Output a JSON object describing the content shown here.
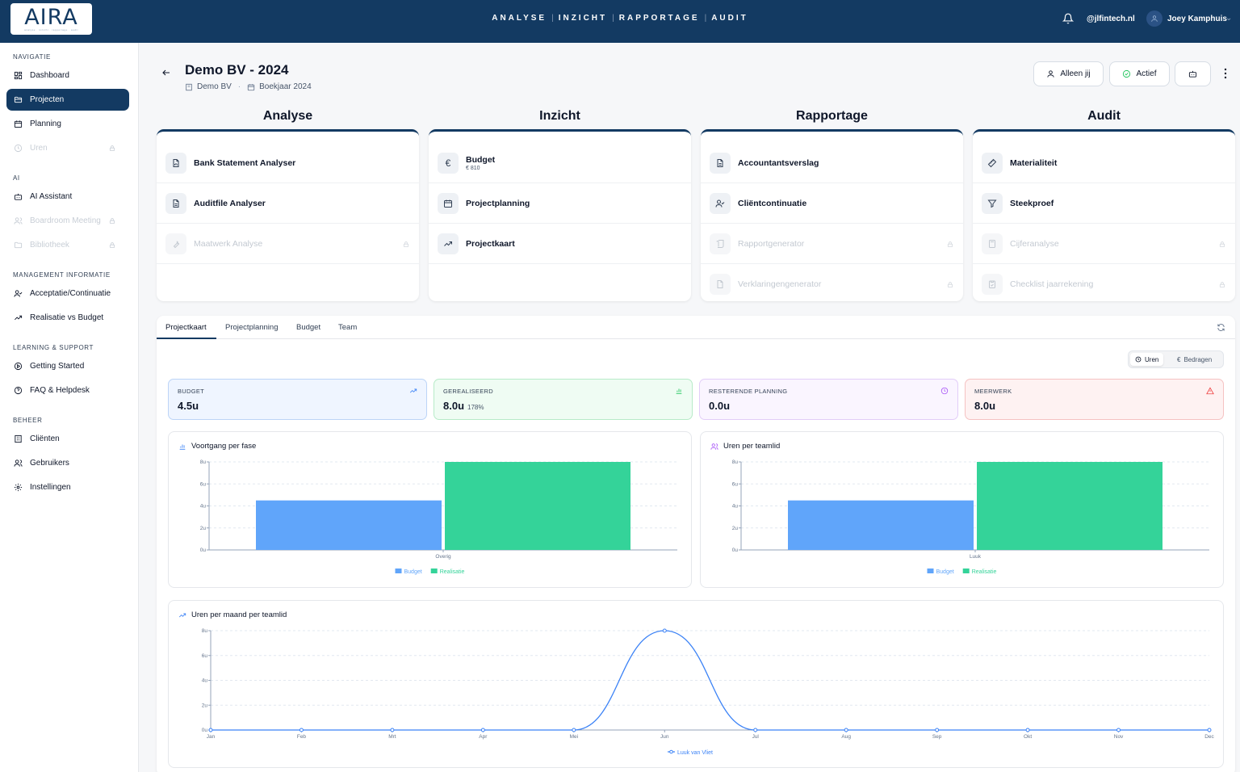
{
  "app": {
    "logo": "AIRA",
    "logo_tagline": "analyse · inzicht · rapportage · audit",
    "topnav": [
      "ANALYSE",
      "INZICHT",
      "RAPPORTAGE",
      "AUDIT"
    ],
    "domain": "@jlfintech.nl",
    "user_name": "Joey Kamphuis"
  },
  "sidebar": {
    "sections": [
      "NAVIGATIE",
      "AI",
      "MANAGEMENT INFORMATIE",
      "LEARNING & SUPPORT",
      "BEHEER"
    ],
    "items": [
      {
        "label": "Dashboard",
        "icon": "grid-icon"
      },
      {
        "label": "Projecten",
        "icon": "folder-icon",
        "active": true
      },
      {
        "label": "Planning",
        "icon": "calendar-icon"
      },
      {
        "label": "Uren",
        "icon": "clock-icon",
        "locked": true
      },
      {
        "label": "AI Assistant",
        "icon": "bot-icon"
      },
      {
        "label": "Boardroom Meeting",
        "icon": "users-icon",
        "locked": true
      },
      {
        "label": "Bibliotheek",
        "icon": "folder-icon",
        "locked": true
      },
      {
        "label": "Acceptatie/Continuatie",
        "icon": "user-check-icon"
      },
      {
        "label": "Realisatie vs Budget",
        "icon": "trend-icon"
      },
      {
        "label": "Getting Started",
        "icon": "play-icon"
      },
      {
        "label": "FAQ & Helpdesk",
        "icon": "help-icon"
      },
      {
        "label": "Cliënten",
        "icon": "building-icon"
      },
      {
        "label": "Gebruikers",
        "icon": "users-icon"
      },
      {
        "label": "Instellingen",
        "icon": "gear-icon"
      }
    ]
  },
  "page": {
    "title": "Demo BV - 2024",
    "client": "Demo BV",
    "year": "Boekjaar 2024",
    "btn_alleen": "Alleen jij",
    "btn_actief": "Actief"
  },
  "categories": [
    {
      "title": "Analyse",
      "rows": [
        {
          "label": "Bank Statement Analyser",
          "sub": "",
          "icon": "file-icon"
        },
        {
          "label": "Auditfile Analyser",
          "sub": "",
          "icon": "file-icon"
        },
        {
          "label": "Maatwerk Analyse",
          "sub": "",
          "icon": "wrench-icon",
          "locked": true
        }
      ]
    },
    {
      "title": "Inzicht",
      "rows": [
        {
          "label": "Budget",
          "sub": "€ 810",
          "icon": "euro-icon"
        },
        {
          "label": "Projectplanning",
          "sub": "",
          "icon": "calendar-icon"
        },
        {
          "label": "Projectkaart",
          "sub": "",
          "icon": "trend-icon"
        }
      ]
    },
    {
      "title": "Rapportage",
      "rows": [
        {
          "label": "Accountantsverslag",
          "sub": "",
          "icon": "file-icon"
        },
        {
          "label": "Cliëntcontinuatie",
          "sub": "",
          "icon": "user-check-icon"
        },
        {
          "label": "Rapportgenerator",
          "sub": "",
          "icon": "file-icon",
          "locked": true
        },
        {
          "label": "Verklaringengenerator",
          "sub": "",
          "icon": "file-icon",
          "locked": true
        }
      ]
    },
    {
      "title": "Audit",
      "rows": [
        {
          "label": "Materialiteit",
          "sub": "",
          "icon": "ruler-icon"
        },
        {
          "label": "Steekproef",
          "sub": "",
          "icon": "filter-icon"
        },
        {
          "label": "Cijferanalyse",
          "sub": "",
          "icon": "calculator-icon",
          "locked": true
        },
        {
          "label": "Checklist jaarrekening",
          "sub": "",
          "icon": "clipboard-icon",
          "locked": true
        }
      ]
    }
  ],
  "panel": {
    "tabs": [
      "Projectkaart",
      "Projectplanning",
      "Budget",
      "Team"
    ],
    "toggle_uren": "Uren",
    "toggle_bedragen": "Bedragen",
    "kpis": [
      {
        "label": "BUDGET",
        "value": "4.5u",
        "extra": "",
        "color": "#3b82f6"
      },
      {
        "label": "GEREALISEERD",
        "value": "8.0u",
        "extra": "178%",
        "color": "#22c55e"
      },
      {
        "label": "RESTERENDE PLANNING",
        "value": "0.0u",
        "extra": "",
        "color": "#a855f7"
      },
      {
        "label": "MEERWERK",
        "value": "8.0u",
        "extra": "",
        "color": "#ef4444"
      }
    ]
  },
  "chart_data": [
    {
      "type": "bar",
      "title": "Voortgang per fase",
      "categories": [
        "Overig"
      ],
      "series": [
        {
          "name": "Budget",
          "values": [
            4.5
          ],
          "color": "#60a5fa"
        },
        {
          "name": "Realisatie",
          "values": [
            8.0
          ],
          "color": "#34d399"
        }
      ],
      "yticks": [
        "0u",
        "2u",
        "4u",
        "6u",
        "8u"
      ],
      "ylim": [
        0,
        8
      ],
      "legend": "bottom"
    },
    {
      "type": "bar",
      "title": "Uren per teamlid",
      "categories": [
        "Luuk"
      ],
      "series": [
        {
          "name": "Budget",
          "values": [
            4.5
          ],
          "color": "#60a5fa"
        },
        {
          "name": "Realisatie",
          "values": [
            8.0
          ],
          "color": "#34d399"
        }
      ],
      "yticks": [
        "0u",
        "2u",
        "4u",
        "6u",
        "8u"
      ],
      "ylim": [
        0,
        8
      ],
      "legend": "bottom"
    },
    {
      "type": "line",
      "title": "Uren per maand per teamlid",
      "x": [
        "Jan",
        "Feb",
        "Mrt",
        "Apr",
        "Mei",
        "Jun",
        "Jul",
        "Aug",
        "Sep",
        "Okt",
        "Nov",
        "Dec"
      ],
      "series": [
        {
          "name": "Luuk van Vliet",
          "values": [
            0,
            0,
            0,
            0,
            0,
            8,
            0,
            0,
            0,
            0,
            0,
            0
          ],
          "color": "#3b82f6"
        }
      ],
      "yticks": [
        "0u",
        "2u",
        "4u",
        "6u",
        "8u"
      ],
      "ylim": [
        0,
        8
      ],
      "legend": "bottom"
    }
  ]
}
